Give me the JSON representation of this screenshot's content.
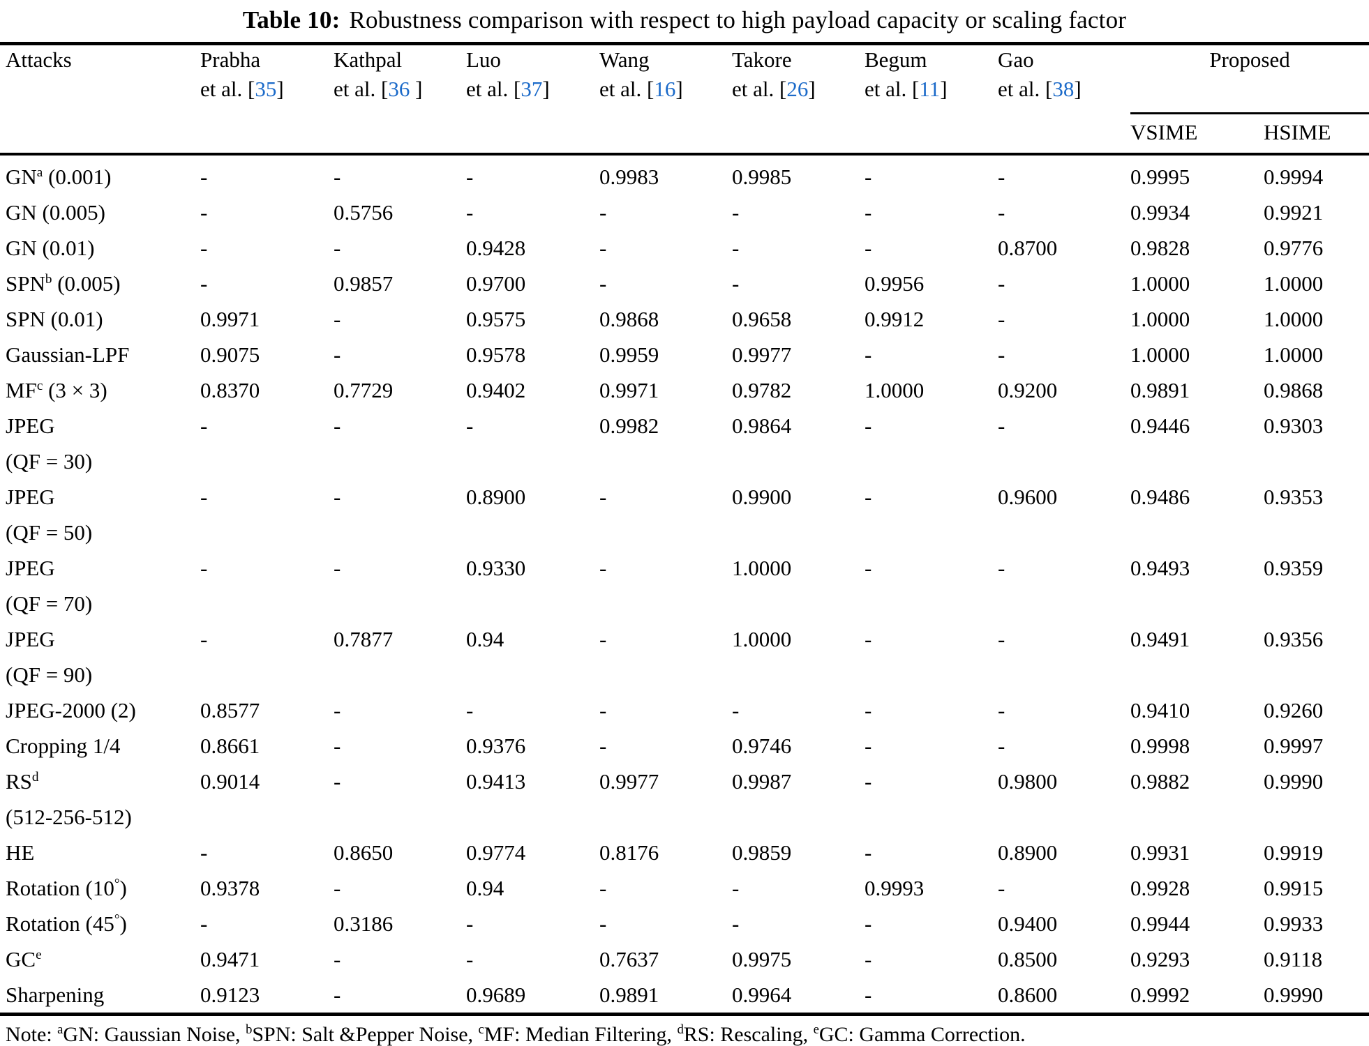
{
  "title": {
    "bold": "Table 10:",
    "rest": "Robustness comparison with respect to high payload capacity or scaling factor"
  },
  "accent_color": "#1b6ac9",
  "table": {
    "attacks_header": "Attacks",
    "method_headers": [
      {
        "name": "Prabha",
        "etal": [
          {
            "t": "et al. ["
          },
          {
            "ref": "35"
          },
          {
            "t": "]"
          }
        ]
      },
      {
        "name": "Kathpal",
        "etal": [
          {
            "t": "et al. ["
          },
          {
            "ref": "36"
          },
          {
            "t": " ]"
          }
        ]
      },
      {
        "name": "Luo",
        "etal": [
          {
            "t": "et al. ["
          },
          {
            "ref": "37"
          },
          {
            "t": "]"
          }
        ]
      },
      {
        "name": "Wang",
        "etal": [
          {
            "t": "et al. ["
          },
          {
            "ref": "16"
          },
          {
            "t": "]"
          }
        ]
      },
      {
        "name": "Takore",
        "etal": [
          {
            "t": "et al. ["
          },
          {
            "ref": "26"
          },
          {
            "t": "]"
          }
        ]
      },
      {
        "name": "Begum",
        "etal": [
          {
            "t": "et al. ["
          },
          {
            "ref": "11"
          },
          {
            "t": "]"
          }
        ]
      },
      {
        "name": "Gao",
        "etal": [
          {
            "t": "et al. ["
          },
          {
            "ref": "38"
          },
          {
            "t": "]"
          }
        ]
      }
    ],
    "proposed_header": "Proposed",
    "proposed_subheaders": [
      "VSIME",
      "HSIME"
    ],
    "rows": [
      {
        "attack": [
          {
            "t": "GN"
          },
          {
            "s": "a"
          },
          {
            "t": " (0.001)"
          }
        ],
        "values": [
          "-",
          "-",
          "-",
          "0.9983",
          "0.9985",
          "-",
          "-",
          "0.9995",
          "0.9994"
        ]
      },
      {
        "attack": [
          {
            "t": "GN (0.005)"
          }
        ],
        "values": [
          "-",
          "0.5756",
          "-",
          "-",
          "-",
          "-",
          "-",
          "0.9934",
          "0.9921"
        ]
      },
      {
        "attack": [
          {
            "t": "GN (0.01)"
          }
        ],
        "values": [
          "-",
          "-",
          "0.9428",
          "-",
          "-",
          "-",
          "0.8700",
          "0.9828",
          "0.9776"
        ]
      },
      {
        "attack": [
          {
            "t": "SPN"
          },
          {
            "s": "b"
          },
          {
            "t": " (0.005)"
          }
        ],
        "values": [
          "-",
          "0.9857",
          "0.9700",
          "-",
          "-",
          "0.9956",
          "-",
          "1.0000",
          "1.0000"
        ]
      },
      {
        "attack": [
          {
            "t": "SPN (0.01)"
          }
        ],
        "values": [
          "0.9971",
          "-",
          "0.9575",
          "0.9868",
          "0.9658",
          "0.9912",
          "-",
          "1.0000",
          "1.0000"
        ]
      },
      {
        "attack": [
          {
            "t": "Gaussian-LPF"
          }
        ],
        "values": [
          "0.9075",
          "-",
          "0.9578",
          "0.9959",
          "0.9977",
          "-",
          "-",
          "1.0000",
          "1.0000"
        ]
      },
      {
        "attack": [
          {
            "t": "MF"
          },
          {
            "s": "c"
          },
          {
            "t": " (3 × 3)"
          }
        ],
        "values": [
          "0.8370",
          "0.7729",
          "0.9402",
          "0.9971",
          "0.9782",
          "1.0000",
          "0.9200",
          "0.9891",
          "0.9868"
        ]
      },
      {
        "attack": [
          {
            "t": "JPEG"
          },
          {
            "br": true
          },
          {
            "t": "(QF = 30)"
          }
        ],
        "values": [
          "-",
          "-",
          "-",
          "0.9982",
          "0.9864",
          "-",
          "-",
          "0.9446",
          "0.9303"
        ]
      },
      {
        "attack": [
          {
            "t": "JPEG"
          },
          {
            "br": true
          },
          {
            "t": "(QF = 50)"
          }
        ],
        "values": [
          "-",
          "-",
          "0.8900",
          "-",
          "0.9900",
          "-",
          "0.9600",
          "0.9486",
          "0.9353"
        ]
      },
      {
        "attack": [
          {
            "t": "JPEG"
          },
          {
            "br": true
          },
          {
            "t": "(QF = 70)"
          }
        ],
        "values": [
          "-",
          "-",
          "0.9330",
          "-",
          "1.0000",
          "-",
          "-",
          "0.9493",
          "0.9359"
        ]
      },
      {
        "attack": [
          {
            "t": "JPEG"
          },
          {
            "br": true
          },
          {
            "t": "(QF = 90)"
          }
        ],
        "values": [
          "-",
          "0.7877",
          "0.94",
          "-",
          "1.0000",
          "-",
          "-",
          "0.9491",
          "0.9356"
        ]
      },
      {
        "attack": [
          {
            "t": "JPEG-2000 (2)"
          }
        ],
        "values": [
          "0.8577",
          "-",
          "-",
          "-",
          "-",
          "-",
          "-",
          "0.9410",
          "0.9260"
        ]
      },
      {
        "attack": [
          {
            "t": "Cropping 1/4"
          }
        ],
        "values": [
          "0.8661",
          "-",
          "0.9376",
          "-",
          "0.9746",
          "-",
          "-",
          "0.9998",
          "0.9997"
        ]
      },
      {
        "attack": [
          {
            "t": "RS"
          },
          {
            "s": "d"
          },
          {
            "br": true
          },
          {
            "t": "(512-256-512)"
          }
        ],
        "values": [
          "0.9014",
          "-",
          "0.9413",
          "0.9977",
          "0.9987",
          "-",
          "0.9800",
          "0.9882",
          "0.9990"
        ]
      },
      {
        "attack": [
          {
            "t": "HE"
          }
        ],
        "values": [
          "-",
          "0.8650",
          "0.9774",
          "0.8176",
          "0.9859",
          "-",
          "0.8900",
          "0.9931",
          "0.9919"
        ]
      },
      {
        "attack": [
          {
            "t": "Rotation (10"
          },
          {
            "s": "°"
          },
          {
            "t": ")"
          }
        ],
        "values": [
          "0.9378",
          "-",
          "0.94",
          "-",
          "-",
          "0.9993",
          "-",
          "0.9928",
          "0.9915"
        ]
      },
      {
        "attack": [
          {
            "t": "Rotation (45"
          },
          {
            "s": "°"
          },
          {
            "t": ")"
          }
        ],
        "values": [
          "-",
          "0.3186",
          "-",
          "-",
          "-",
          "-",
          "0.9400",
          "0.9944",
          "0.9933"
        ]
      },
      {
        "attack": [
          {
            "t": "GC"
          },
          {
            "s": "e"
          }
        ],
        "values": [
          "0.9471",
          "-",
          "-",
          "0.7637",
          "0.9975",
          "-",
          "0.8500",
          "0.9293",
          "0.9118"
        ]
      },
      {
        "attack": [
          {
            "t": "Sharpening"
          }
        ],
        "values": [
          "0.9123",
          "-",
          "0.9689",
          "0.9891",
          "0.9964",
          "-",
          "0.8600",
          "0.9992",
          "0.9990"
        ]
      }
    ],
    "note": [
      {
        "t": "Note: "
      },
      {
        "s": "a"
      },
      {
        "t": "GN: Gaussian Noise, "
      },
      {
        "s": "b"
      },
      {
        "t": "SPN: Salt &Pepper Noise, "
      },
      {
        "s": "c"
      },
      {
        "t": "MF: Median Filtering, "
      },
      {
        "s": "d"
      },
      {
        "t": "RS: Rescaling, "
      },
      {
        "s": "e"
      },
      {
        "t": "GC: Gamma Correction."
      }
    ]
  }
}
